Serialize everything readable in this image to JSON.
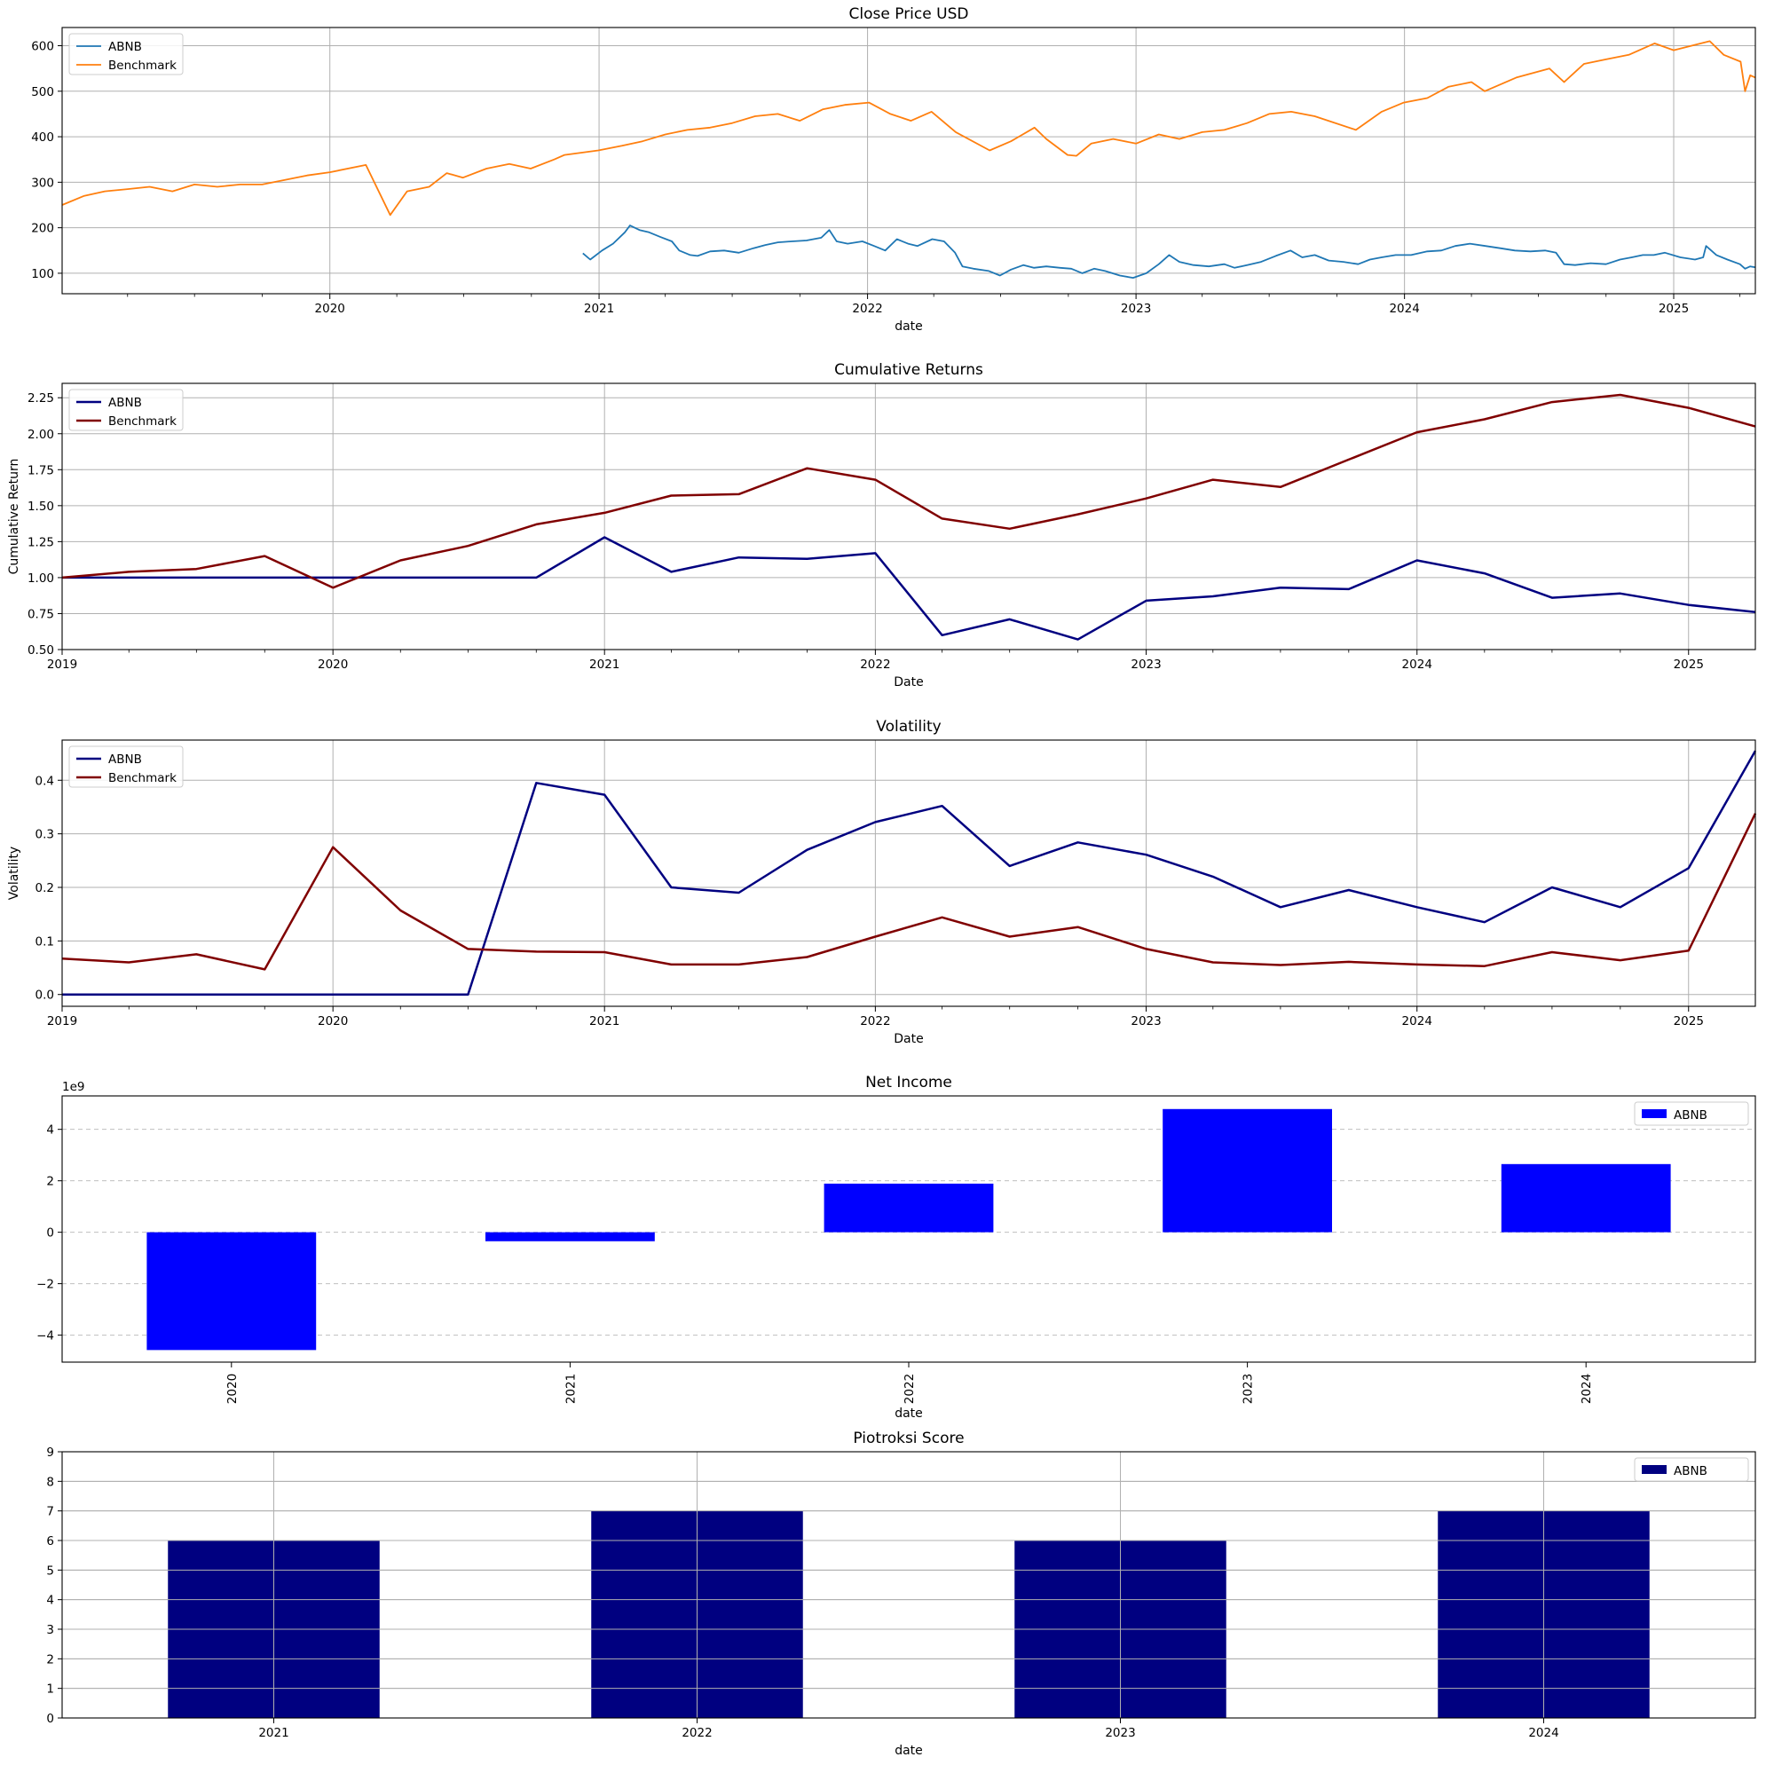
{
  "figure": {
    "background": "#ffffff",
    "grid_color": "#b0b0b0"
  },
  "chart_data": [
    {
      "id": "close",
      "type": "line",
      "title": "Close Price USD",
      "xlabel": "date",
      "ylabel": "",
      "xlim": [
        "2019-01-02",
        "2025-04-22"
      ],
      "ylim": [
        55,
        640
      ],
      "xticks": [
        "2020-01-01",
        "2021-01-01",
        "2022-01-01",
        "2023-01-01",
        "2024-01-01",
        "2025-01-01"
      ],
      "xtick_labels": [
        "2020",
        "2021",
        "2022",
        "2023",
        "2024",
        "2025"
      ],
      "yticks": [
        100,
        200,
        300,
        400,
        500,
        600
      ],
      "ytick_labels": [
        "100",
        "200",
        "300",
        "400",
        "500",
        "600"
      ],
      "grid": "both",
      "legend": "upper left",
      "series": [
        {
          "name": "ABNB",
          "color": "#1f77b4",
          "linewidth": 1.8,
          "x": [
            "2020-12-10",
            "2020-12-20",
            "2021-01-05",
            "2021-01-20",
            "2021-02-05",
            "2021-02-12",
            "2021-02-25",
            "2021-03-10",
            "2021-03-25",
            "2021-04-10",
            "2021-04-20",
            "2021-05-05",
            "2021-05-15",
            "2021-06-01",
            "2021-06-20",
            "2021-07-10",
            "2021-07-30",
            "2021-08-15",
            "2021-09-01",
            "2021-09-20",
            "2021-10-10",
            "2021-10-30",
            "2021-11-10",
            "2021-11-20",
            "2021-12-05",
            "2021-12-25",
            "2022-01-10",
            "2022-01-25",
            "2022-02-10",
            "2022-02-25",
            "2022-03-10",
            "2022-03-30",
            "2022-04-15",
            "2022-04-30",
            "2022-05-10",
            "2022-05-25",
            "2022-06-15",
            "2022-06-30",
            "2022-07-15",
            "2022-08-01",
            "2022-08-15",
            "2022-09-01",
            "2022-09-20",
            "2022-10-05",
            "2022-10-20",
            "2022-11-05",
            "2022-11-20",
            "2022-12-10",
            "2022-12-28",
            "2023-01-15",
            "2023-02-01",
            "2023-02-15",
            "2023-03-01",
            "2023-03-20",
            "2023-04-10",
            "2023-05-01",
            "2023-05-15",
            "2023-06-01",
            "2023-06-20",
            "2023-07-10",
            "2023-07-30",
            "2023-08-15",
            "2023-09-01",
            "2023-09-20",
            "2023-10-10",
            "2023-10-30",
            "2023-11-15",
            "2023-12-01",
            "2023-12-20",
            "2024-01-10",
            "2024-02-01",
            "2024-02-20",
            "2024-03-10",
            "2024-03-30",
            "2024-04-20",
            "2024-05-10",
            "2024-05-30",
            "2024-06-20",
            "2024-07-10",
            "2024-07-25",
            "2024-08-05",
            "2024-08-20",
            "2024-09-10",
            "2024-10-01",
            "2024-10-20",
            "2024-11-05",
            "2024-11-20",
            "2024-12-05",
            "2024-12-20",
            "2025-01-10",
            "2025-01-30",
            "2025-02-10",
            "2025-02-14",
            "2025-02-28",
            "2025-03-15",
            "2025-04-01",
            "2025-04-08",
            "2025-04-15",
            "2025-04-22"
          ],
          "y": [
            144,
            130,
            150,
            165,
            190,
            205,
            195,
            190,
            180,
            170,
            150,
            140,
            138,
            148,
            150,
            145,
            155,
            162,
            168,
            170,
            172,
            178,
            195,
            170,
            165,
            170,
            160,
            150,
            175,
            165,
            160,
            175,
            170,
            145,
            115,
            110,
            105,
            95,
            108,
            118,
            112,
            115,
            112,
            110,
            100,
            110,
            105,
            95,
            90,
            100,
            120,
            140,
            125,
            118,
            115,
            120,
            112,
            118,
            125,
            138,
            150,
            135,
            140,
            128,
            125,
            120,
            130,
            135,
            140,
            140,
            148,
            150,
            160,
            165,
            160,
            155,
            150,
            148,
            150,
            145,
            120,
            118,
            122,
            120,
            130,
            135,
            140,
            140,
            145,
            135,
            130,
            135,
            160,
            140,
            130,
            120,
            110,
            115,
            113
          ]
        },
        {
          "name": "Benchmark",
          "color": "#ff7f0e",
          "linewidth": 1.8,
          "x": [
            "2019-01-02",
            "2019-02-01",
            "2019-03-01",
            "2019-04-01",
            "2019-05-01",
            "2019-06-01",
            "2019-07-01",
            "2019-08-01",
            "2019-09-01",
            "2019-10-01",
            "2019-11-01",
            "2019-12-01",
            "2020-01-01",
            "2020-02-19",
            "2020-03-23",
            "2020-04-15",
            "2020-05-15",
            "2020-06-08",
            "2020-06-30",
            "2020-08-01",
            "2020-09-01",
            "2020-09-30",
            "2020-11-01",
            "2020-11-15",
            "2020-12-31",
            "2021-02-01",
            "2021-03-01",
            "2021-04-01",
            "2021-05-01",
            "2021-06-01",
            "2021-07-01",
            "2021-08-01",
            "2021-09-01",
            "2021-10-01",
            "2021-11-01",
            "2021-12-01",
            "2022-01-03",
            "2022-02-01",
            "2022-03-01",
            "2022-03-29",
            "2022-05-01",
            "2022-06-16",
            "2022-07-15",
            "2022-08-16",
            "2022-09-01",
            "2022-09-30",
            "2022-10-12",
            "2022-11-01",
            "2022-12-01",
            "2023-01-01",
            "2023-02-01",
            "2023-03-01",
            "2023-04-01",
            "2023-05-01",
            "2023-06-01",
            "2023-07-01",
            "2023-07-31",
            "2023-09-01",
            "2023-10-27",
            "2023-12-01",
            "2023-12-31",
            "2024-02-01",
            "2024-03-01",
            "2024-04-01",
            "2024-04-19",
            "2024-06-01",
            "2024-07-16",
            "2024-08-05",
            "2024-09-01",
            "2024-10-01",
            "2024-11-01",
            "2024-12-06",
            "2025-01-01",
            "2025-02-19",
            "2025-03-10",
            "2025-04-02",
            "2025-04-08",
            "2025-04-15",
            "2025-04-22"
          ],
          "y": [
            250,
            270,
            280,
            285,
            290,
            280,
            295,
            290,
            295,
            295,
            305,
            315,
            322,
            338,
            228,
            280,
            290,
            320,
            310,
            330,
            340,
            330,
            350,
            360,
            370,
            380,
            390,
            405,
            415,
            420,
            430,
            445,
            450,
            435,
            460,
            470,
            475,
            450,
            435,
            455,
            410,
            370,
            390,
            420,
            395,
            360,
            358,
            385,
            395,
            385,
            405,
            395,
            410,
            415,
            430,
            450,
            455,
            445,
            415,
            455,
            475,
            485,
            510,
            520,
            500,
            530,
            550,
            520,
            560,
            570,
            580,
            605,
            590,
            610,
            580,
            565,
            500,
            535,
            530
          ]
        }
      ]
    },
    {
      "id": "cumret",
      "type": "line",
      "title": "Cumulative Returns",
      "xlabel": "Date",
      "ylabel": "Cumulative Return",
      "xlim": [
        "2019-01-01",
        "2025-04-01"
      ],
      "ylim": [
        0.5,
        2.35
      ],
      "xticks": [
        "2019-01-01",
        "2020-01-01",
        "2021-01-01",
        "2022-01-01",
        "2023-01-01",
        "2024-01-01",
        "2025-01-01"
      ],
      "xtick_labels": [
        "2019",
        "2020",
        "2021",
        "2022",
        "2023",
        "2024",
        "2025"
      ],
      "yticks": [
        0.5,
        0.75,
        1.0,
        1.25,
        1.5,
        1.75,
        2.0,
        2.25
      ],
      "ytick_labels": [
        "0.50",
        "0.75",
        "1.00",
        "1.25",
        "1.50",
        "1.75",
        "2.00",
        "2.25"
      ],
      "grid": "both",
      "legend": "upper left",
      "x": [
        "2019-01-01",
        "2019-04-01",
        "2019-07-01",
        "2019-10-01",
        "2020-01-01",
        "2020-04-01",
        "2020-07-01",
        "2020-10-01",
        "2021-01-01",
        "2021-04-01",
        "2021-07-01",
        "2021-10-01",
        "2022-01-01",
        "2022-04-01",
        "2022-07-01",
        "2022-10-01",
        "2023-01-01",
        "2023-04-01",
        "2023-07-01",
        "2023-10-01",
        "2024-01-01",
        "2024-04-01",
        "2024-07-01",
        "2024-10-01",
        "2025-01-01",
        "2025-04-01"
      ],
      "series": [
        {
          "name": "ABNB",
          "color": "#000080",
          "linewidth": 2.5,
          "values": [
            1.0,
            1.0,
            1.0,
            1.0,
            1.0,
            1.0,
            1.0,
            1.0,
            1.28,
            1.04,
            1.14,
            1.13,
            1.17,
            0.6,
            0.71,
            0.57,
            0.84,
            0.87,
            0.93,
            0.92,
            1.12,
            1.03,
            0.86,
            0.89,
            0.81,
            0.76
          ]
        },
        {
          "name": "Benchmark",
          "color": "#800000",
          "linewidth": 2.5,
          "values": [
            1.0,
            1.04,
            1.06,
            1.15,
            0.93,
            1.12,
            1.22,
            1.37,
            1.45,
            1.57,
            1.58,
            1.76,
            1.68,
            1.41,
            1.34,
            1.44,
            1.55,
            1.68,
            1.63,
            1.82,
            2.01,
            2.1,
            2.22,
            2.27,
            2.18,
            2.05
          ]
        }
      ]
    },
    {
      "id": "vol",
      "type": "line",
      "title": "Volatility",
      "xlabel": "Date",
      "ylabel": "Volatility",
      "xlim": [
        "2019-01-01",
        "2025-04-01"
      ],
      "ylim": [
        -0.022,
        0.475
      ],
      "xticks": [
        "2019-01-01",
        "2020-01-01",
        "2021-01-01",
        "2022-01-01",
        "2023-01-01",
        "2024-01-01",
        "2025-01-01"
      ],
      "xtick_labels": [
        "2019",
        "2020",
        "2021",
        "2022",
        "2023",
        "2024",
        "2025"
      ],
      "yticks": [
        0.0,
        0.1,
        0.2,
        0.3,
        0.4
      ],
      "ytick_labels": [
        "0.0",
        "0.1",
        "0.2",
        "0.3",
        "0.4"
      ],
      "grid": "both",
      "legend": "upper left",
      "x": [
        "2019-01-01",
        "2019-04-01",
        "2019-07-01",
        "2019-10-01",
        "2020-01-01",
        "2020-04-01",
        "2020-07-01",
        "2020-10-01",
        "2021-01-01",
        "2021-04-01",
        "2021-07-01",
        "2021-10-01",
        "2022-01-01",
        "2022-04-01",
        "2022-07-01",
        "2022-10-01",
        "2023-01-01",
        "2023-04-01",
        "2023-07-01",
        "2023-10-01",
        "2024-01-01",
        "2024-04-01",
        "2024-07-01",
        "2024-10-01",
        "2025-01-01",
        "2025-04-01"
      ],
      "series": [
        {
          "name": "ABNB",
          "color": "#000080",
          "linewidth": 2.5,
          "values": [
            0.0,
            0.0,
            0.0,
            0.0,
            0.0,
            0.0,
            0.0,
            0.395,
            0.373,
            0.2,
            0.19,
            0.27,
            0.322,
            0.352,
            0.24,
            0.284,
            0.261,
            0.22,
            0.163,
            0.195,
            0.163,
            0.135,
            0.2,
            0.163,
            0.236,
            0.455
          ]
        },
        {
          "name": "Benchmark",
          "color": "#800000",
          "linewidth": 2.5,
          "values": [
            0.067,
            0.06,
            0.075,
            0.047,
            0.275,
            0.157,
            0.085,
            0.08,
            0.079,
            0.056,
            0.056,
            0.07,
            0.108,
            0.144,
            0.108,
            0.126,
            0.085,
            0.06,
            0.055,
            0.061,
            0.056,
            0.053,
            0.079,
            0.064,
            0.082,
            0.338
          ]
        }
      ]
    },
    {
      "id": "netincome",
      "type": "bar",
      "title": "Net Income",
      "xlabel": "date",
      "ylabel": "",
      "offset_label": "1e9",
      "categories": [
        "2020",
        "2021",
        "2022",
        "2023",
        "2024"
      ],
      "ylim": [
        -5050000000.0,
        5300000000.0
      ],
      "yticks": [
        -4000000000.0,
        -2000000000.0,
        0,
        2000000000.0,
        4000000000.0
      ],
      "ytick_labels": [
        "−4",
        "−2",
        "0",
        "2",
        "4"
      ],
      "grid": "y-dashed",
      "legend": "upper right",
      "series": [
        {
          "name": "ABNB",
          "color": "#0000ff",
          "values": [
            -4580000000.0,
            -350000000.0,
            1890000000.0,
            4790000000.0,
            2650000000.0
          ]
        }
      ]
    },
    {
      "id": "piotroski",
      "type": "bar",
      "title": "Piotroksi Score",
      "xlabel": "date",
      "ylabel": "",
      "categories": [
        "2021",
        "2022",
        "2023",
        "2024"
      ],
      "ylim": [
        0,
        9
      ],
      "yticks": [
        0,
        1,
        2,
        3,
        4,
        5,
        6,
        7,
        8,
        9
      ],
      "ytick_labels": [
        "0",
        "1",
        "2",
        "3",
        "4",
        "5",
        "6",
        "7",
        "8",
        "9"
      ],
      "grid": "both",
      "legend": "upper right",
      "series": [
        {
          "name": "ABNB",
          "color": "#000080",
          "values": [
            6,
            7,
            6,
            7
          ]
        }
      ]
    }
  ]
}
